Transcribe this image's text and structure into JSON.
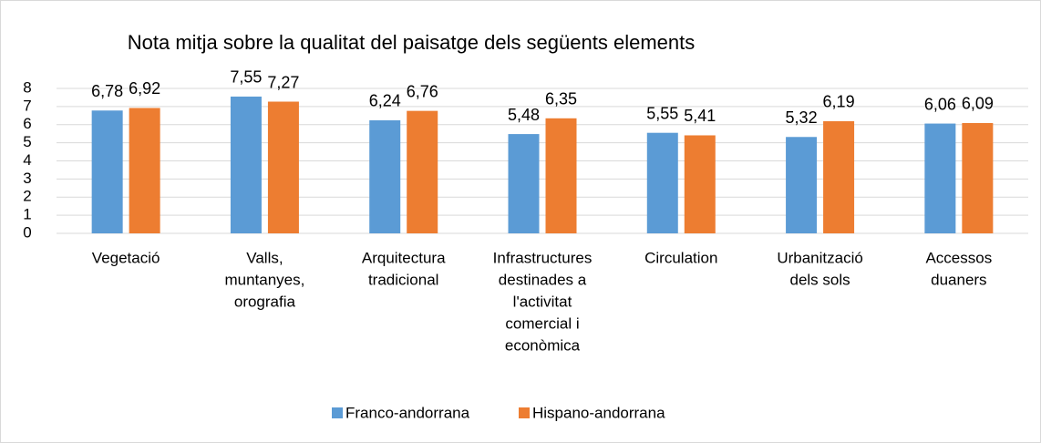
{
  "chart_data": {
    "type": "bar",
    "title": "Nota mitja sobre la qualitat del paisatge dels següents elements",
    "categories": [
      [
        "Vegetació"
      ],
      [
        "Valls,",
        "muntanyes,",
        "orografia"
      ],
      [
        "Arquitectura",
        "tradicional"
      ],
      [
        "Infrastructures",
        "destinades a",
        "l'activitat",
        "comercial i",
        "econòmica"
      ],
      [
        "Circulation"
      ],
      [
        "Urbanització",
        "dels sols"
      ],
      [
        "Accessos",
        "duaners"
      ]
    ],
    "series": [
      {
        "name": "Franco-andorrana",
        "color": "#5b9bd5",
        "values": [
          6.78,
          7.55,
          6.24,
          5.48,
          5.55,
          5.32,
          6.06
        ],
        "value_labels": [
          "6,78",
          "7,55",
          "6,24",
          "5,48",
          "5,55",
          "5,32",
          "6,06"
        ]
      },
      {
        "name": "Hispano-andorrana",
        "color": "#ed7d31",
        "values": [
          6.92,
          7.27,
          6.76,
          6.35,
          5.41,
          6.19,
          6.09
        ],
        "value_labels": [
          "6,92",
          "7,27",
          "6,76",
          "6,35",
          "5,41",
          "6,19",
          "6,09"
        ]
      }
    ],
    "ylim": [
      0,
      8
    ],
    "yticks": [
      0,
      1,
      2,
      3,
      4,
      5,
      6,
      7,
      8
    ],
    "grid": true,
    "legend": "bottom"
  }
}
